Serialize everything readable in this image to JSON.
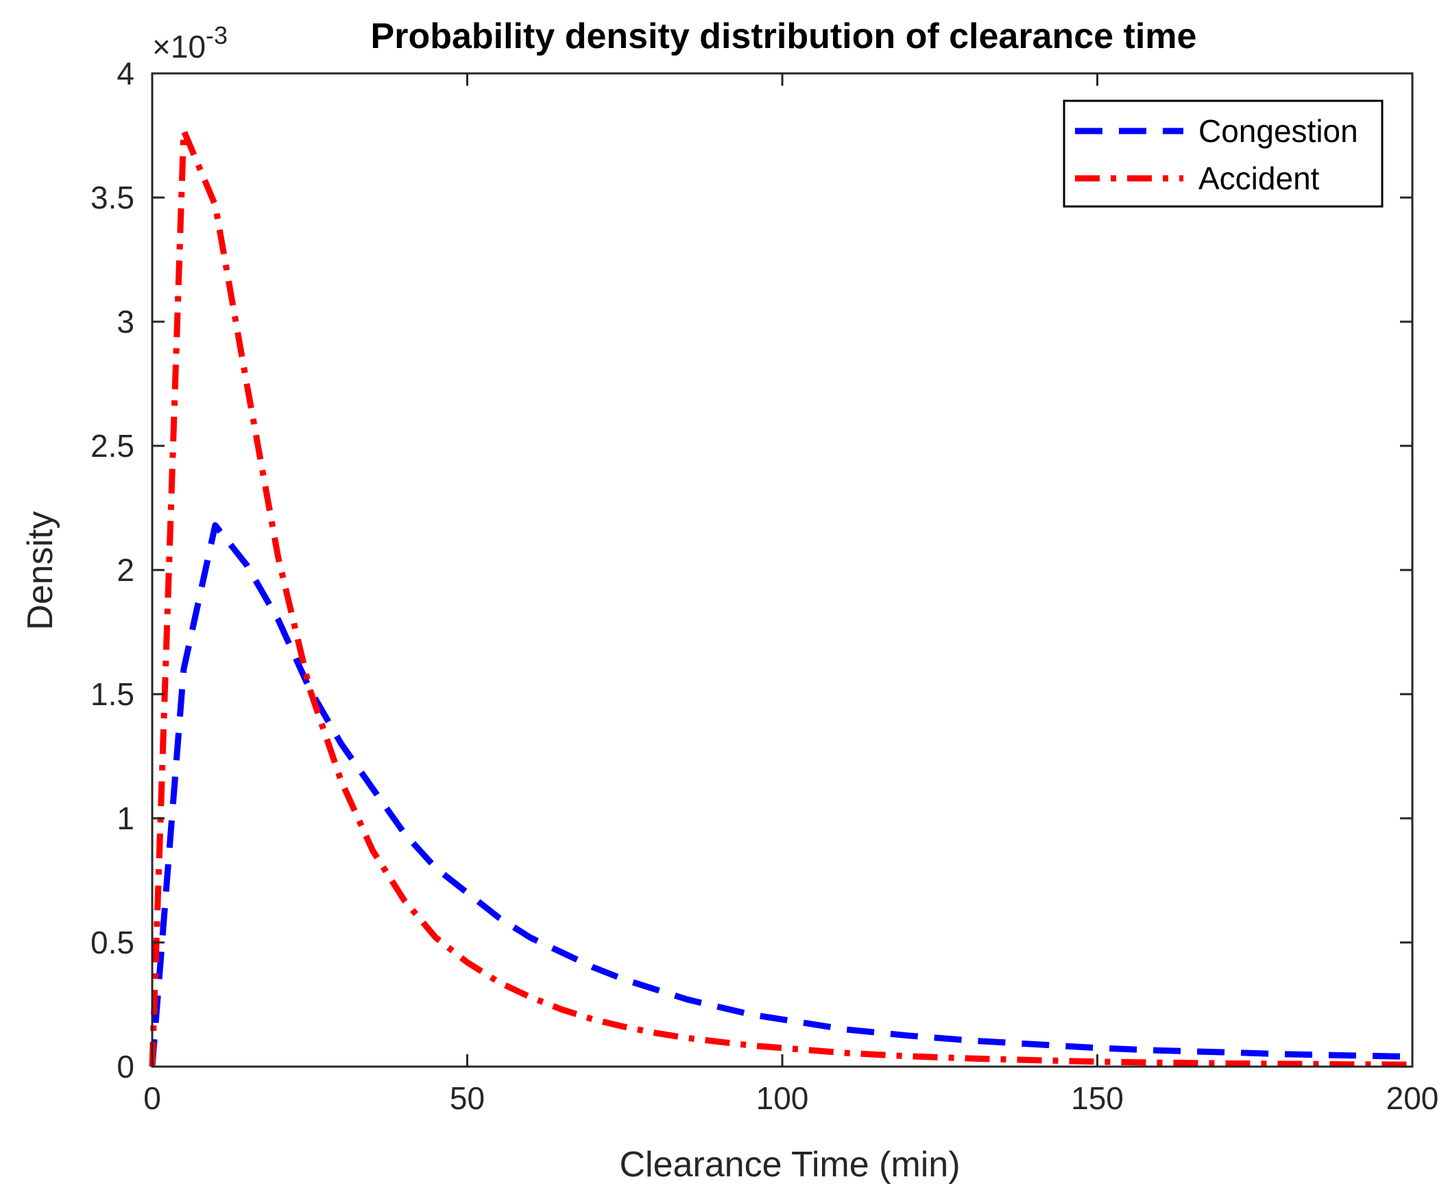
{
  "chart_data": {
    "type": "line",
    "title": "Probability density distribution of clearance time",
    "xlabel": "Clearance Time (min)",
    "ylabel": "Density",
    "xlim": [
      0,
      200
    ],
    "ylim": [
      0,
      4
    ],
    "y_exponent_base": "×10",
    "y_exponent_power": "-3",
    "xticks": [
      0,
      50,
      100,
      150,
      200
    ],
    "xtick_labels": [
      "0",
      "50",
      "100",
      "150",
      "200"
    ],
    "yticks": [
      0,
      0.5,
      1,
      1.5,
      2,
      2.5,
      3,
      3.5,
      4
    ],
    "ytick_labels": [
      "0",
      "0.5",
      "1",
      "1.5",
      "2",
      "2.5",
      "3",
      "3.5",
      "4"
    ],
    "grid": false,
    "legend_position": "top-right",
    "series": [
      {
        "name": "Congestion",
        "color": "#0000ff",
        "style": "dashed",
        "x": [
          0,
          5,
          10,
          15,
          20,
          25,
          30,
          35,
          40,
          45,
          50,
          55,
          60,
          65,
          70,
          75,
          80,
          85,
          90,
          95,
          100,
          110,
          120,
          130,
          140,
          150,
          160,
          170,
          180,
          190,
          200
        ],
        "y": [
          0,
          1.6,
          2.18,
          2.02,
          1.8,
          1.52,
          1.3,
          1.12,
          0.94,
          0.8,
          0.7,
          0.6,
          0.52,
          0.46,
          0.4,
          0.35,
          0.31,
          0.27,
          0.24,
          0.21,
          0.19,
          0.15,
          0.125,
          0.105,
          0.09,
          0.075,
          0.065,
          0.058,
          0.05,
          0.045,
          0.04
        ]
      },
      {
        "name": "Accident",
        "color": "#ff0000",
        "style": "dashdot",
        "x": [
          0,
          5,
          10,
          15,
          20,
          25,
          30,
          35,
          40,
          45,
          50,
          55,
          60,
          65,
          70,
          75,
          80,
          85,
          90,
          95,
          100,
          110,
          120,
          130,
          140,
          150,
          160,
          170,
          180,
          190,
          200
        ],
        "y": [
          0,
          3.77,
          3.47,
          2.75,
          2.05,
          1.52,
          1.15,
          0.87,
          0.67,
          0.52,
          0.42,
          0.34,
          0.28,
          0.23,
          0.19,
          0.16,
          0.135,
          0.115,
          0.1,
          0.085,
          0.075,
          0.055,
          0.042,
          0.033,
          0.026,
          0.02,
          0.016,
          0.013,
          0.011,
          0.009,
          0.008
        ]
      }
    ]
  }
}
